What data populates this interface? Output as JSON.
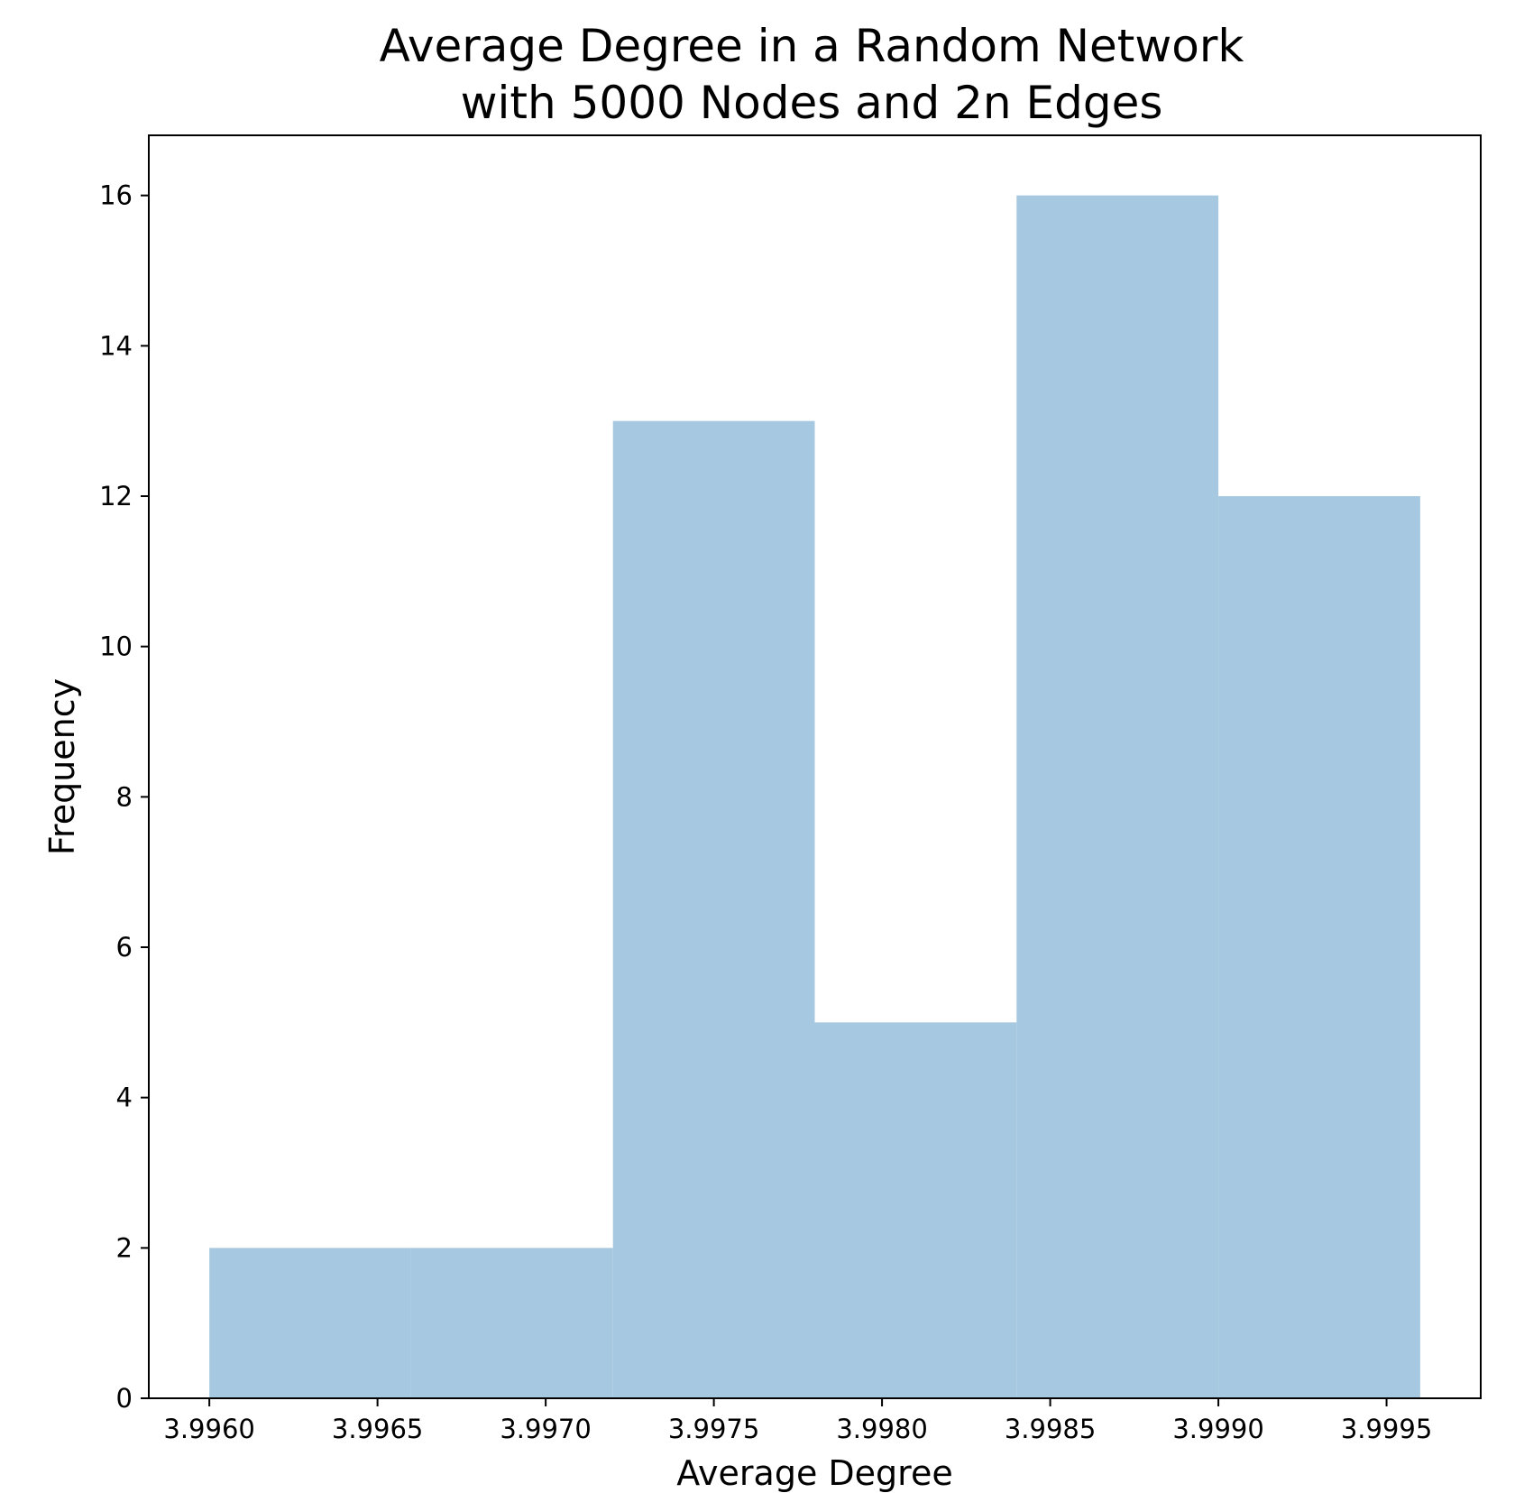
{
  "chart_data": {
    "type": "bar",
    "subtype": "histogram",
    "title_lines": [
      "Average Degree in a Random Network",
      "with 5000 Nodes and 2n Edges"
    ],
    "xlabel": "Average Degree",
    "ylabel": "Frequency",
    "bin_edges": [
      3.996,
      3.9966,
      3.9972,
      3.9978,
      3.9984,
      3.999,
      3.9996
    ],
    "values": [
      2,
      2,
      13,
      5,
      16,
      12
    ],
    "xlim": [
      3.99582,
      3.99978
    ],
    "ylim": [
      0,
      16.8
    ],
    "x_ticks": [
      3.996,
      3.9965,
      3.997,
      3.9975,
      3.998,
      3.9985,
      3.999,
      3.9995
    ],
    "x_tick_labels": [
      "3.9960",
      "3.9965",
      "3.9970",
      "3.9975",
      "3.9980",
      "3.9985",
      "3.9990",
      "3.9995"
    ],
    "y_ticks": [
      0,
      2,
      4,
      6,
      8,
      10,
      12,
      14,
      16
    ],
    "y_tick_labels": [
      "0",
      "2",
      "4",
      "6",
      "8",
      "10",
      "12",
      "14",
      "16"
    ],
    "grid": false,
    "legend": "none",
    "colors": {
      "bar": "#a6c8e0",
      "axis": "#000000"
    }
  }
}
